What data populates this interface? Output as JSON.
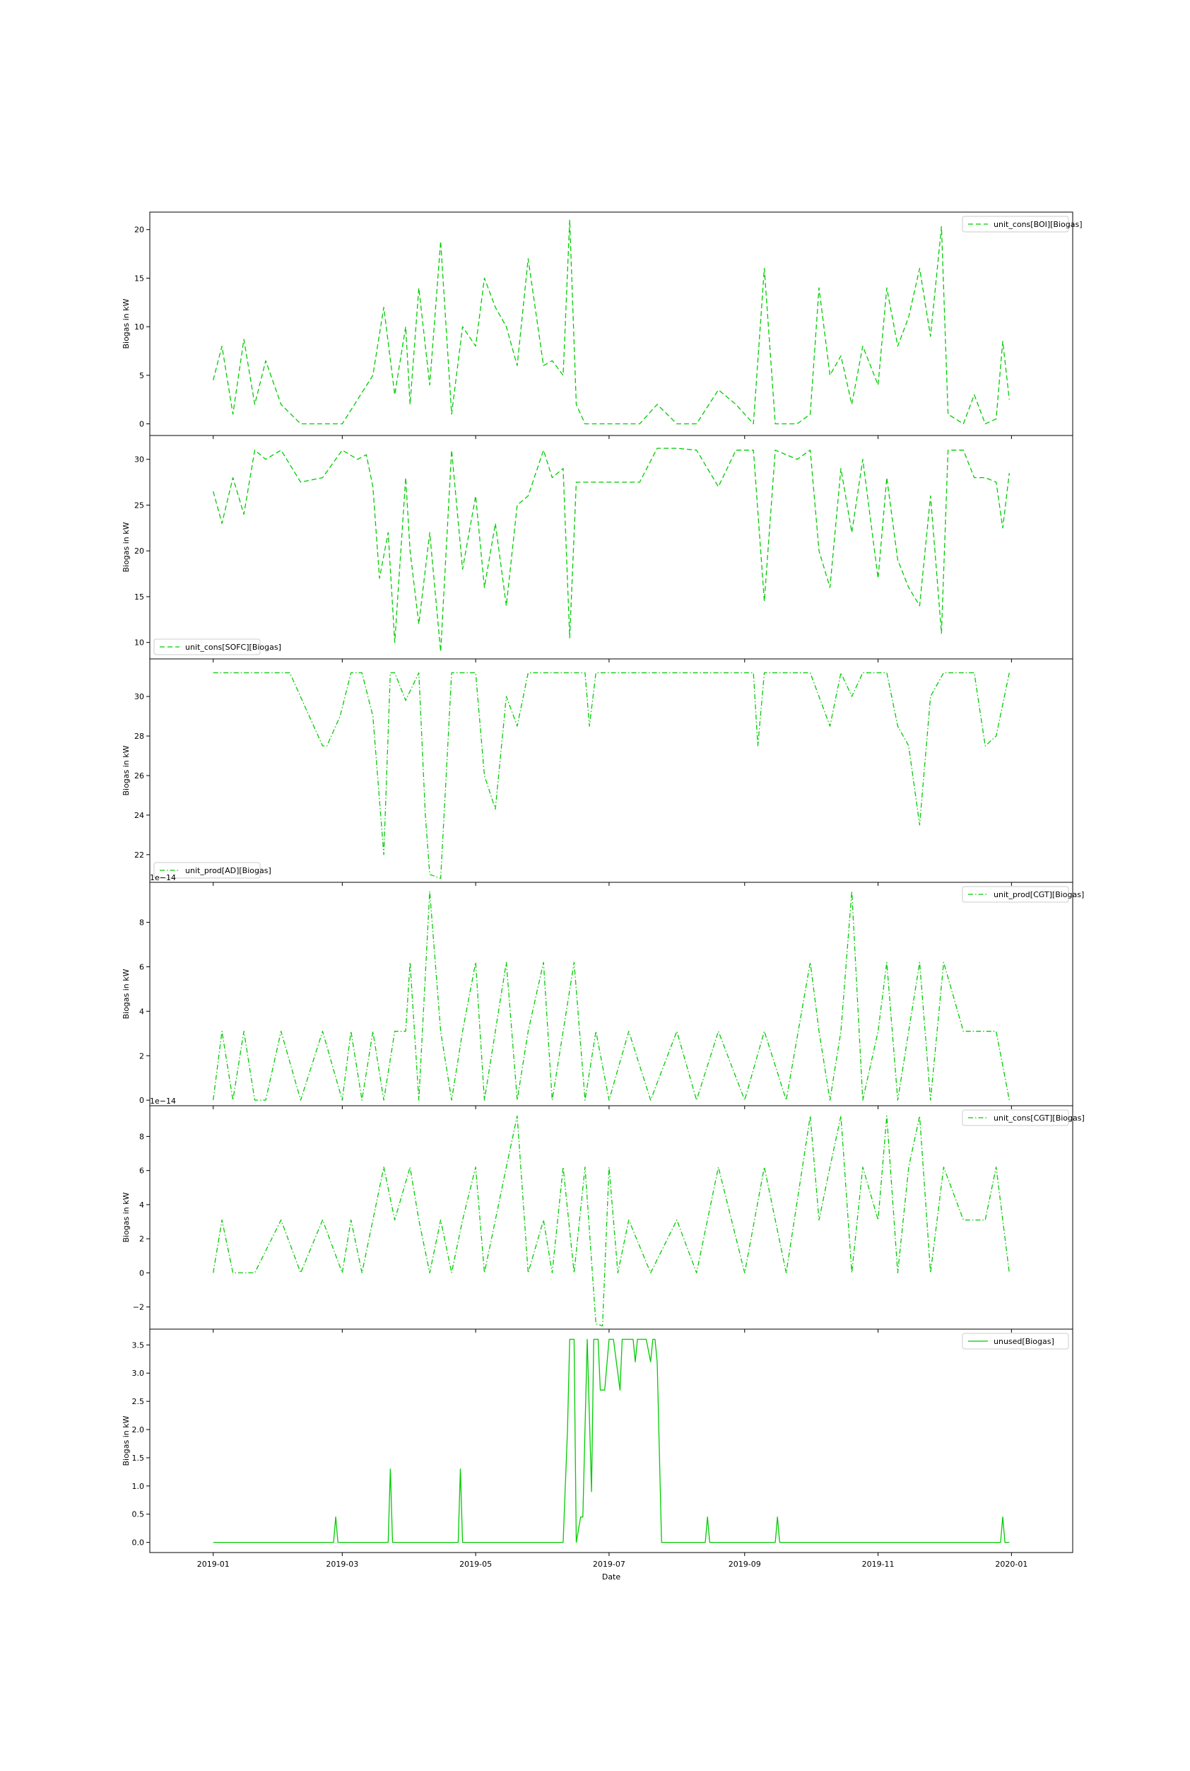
{
  "figure": {
    "xlabel": "Date",
    "x_ticks": [
      "2019-01",
      "2019-03",
      "2019-05",
      "2019-07",
      "2019-09",
      "2019-11",
      "2020-01"
    ],
    "line_color": "#00cc00",
    "ylabel": "Biogas in kW"
  },
  "chart_data": [
    {
      "type": "line",
      "series": [
        {
          "name": "unit_cons[BOI][Biogas]",
          "style": "dashed",
          "color": "#00cc00"
        }
      ],
      "ylabel": "Biogas in kW",
      "ylim": [
        -1.2,
        21.8
      ],
      "yticks": [
        0,
        5,
        10,
        15,
        20
      ],
      "ytick_labels": [
        "0",
        "5",
        "10",
        "15",
        "20"
      ],
      "offset_text": "",
      "legend_loc": "upper right",
      "x": [
        "2019-01-01",
        "2019-01-05",
        "2019-01-10",
        "2019-01-15",
        "2019-01-20",
        "2019-01-25",
        "2019-02-01",
        "2019-02-10",
        "2019-02-20",
        "2019-03-01",
        "2019-03-08",
        "2019-03-15",
        "2019-03-20",
        "2019-03-25",
        "2019-03-30",
        "2019-04-01",
        "2019-04-05",
        "2019-04-10",
        "2019-04-15",
        "2019-04-20",
        "2019-04-25",
        "2019-05-01",
        "2019-05-05",
        "2019-05-10",
        "2019-05-15",
        "2019-05-20",
        "2019-05-25",
        "2019-06-01",
        "2019-06-05",
        "2019-06-10",
        "2019-06-13",
        "2019-06-16",
        "2019-06-20",
        "2019-07-01",
        "2019-07-15",
        "2019-07-23",
        "2019-08-01",
        "2019-08-10",
        "2019-08-20",
        "2019-08-28",
        "2019-09-05",
        "2019-09-10",
        "2019-09-15",
        "2019-09-25",
        "2019-10-01",
        "2019-10-05",
        "2019-10-10",
        "2019-10-15",
        "2019-10-20",
        "2019-10-25",
        "2019-11-01",
        "2019-11-05",
        "2019-11-10",
        "2019-11-15",
        "2019-11-20",
        "2019-11-25",
        "2019-11-30",
        "2019-12-03",
        "2019-12-10",
        "2019-12-15",
        "2019-12-20",
        "2019-12-25",
        "2019-12-28",
        "2019-12-31"
      ],
      "y": [
        4.5,
        8,
        1,
        8.7,
        2,
        6.5,
        2,
        0,
        0,
        0,
        2.5,
        5,
        12,
        3,
        10,
        2,
        14,
        4,
        18.8,
        1,
        10,
        8,
        15,
        12,
        10,
        6,
        17,
        6,
        6.5,
        5,
        21,
        2,
        0,
        0,
        0,
        2,
        0,
        0,
        3.5,
        2,
        0,
        16,
        0,
        0,
        1,
        14,
        5,
        7,
        2,
        8,
        4,
        14,
        8,
        11,
        16,
        9,
        20.3,
        1,
        0,
        3,
        0,
        0.5,
        8.5,
        2.5
      ]
    },
    {
      "type": "line",
      "series": [
        {
          "name": "unit_cons[SOFC][Biogas]",
          "style": "dashed",
          "color": "#00cc00"
        }
      ],
      "ylabel": "Biogas in kW",
      "ylim": [
        8.2,
        32.6
      ],
      "yticks": [
        10,
        15,
        20,
        25,
        30
      ],
      "ytick_labels": [
        "10",
        "15",
        "20",
        "25",
        "30"
      ],
      "offset_text": "",
      "legend_loc": "lower left",
      "x": [
        "2019-01-01",
        "2019-01-05",
        "2019-01-10",
        "2019-01-15",
        "2019-01-20",
        "2019-01-25",
        "2019-02-01",
        "2019-02-10",
        "2019-02-20",
        "2019-03-01",
        "2019-03-08",
        "2019-03-12",
        "2019-03-15",
        "2019-03-18",
        "2019-03-22",
        "2019-03-25",
        "2019-03-30",
        "2019-04-01",
        "2019-04-05",
        "2019-04-10",
        "2019-04-15",
        "2019-04-20",
        "2019-04-25",
        "2019-05-01",
        "2019-05-05",
        "2019-05-10",
        "2019-05-15",
        "2019-05-20",
        "2019-05-25",
        "2019-06-01",
        "2019-06-05",
        "2019-06-10",
        "2019-06-13",
        "2019-06-16",
        "2019-06-20",
        "2019-07-01",
        "2019-07-15",
        "2019-07-23",
        "2019-08-01",
        "2019-08-10",
        "2019-08-20",
        "2019-08-28",
        "2019-09-05",
        "2019-09-10",
        "2019-09-15",
        "2019-09-25",
        "2019-10-01",
        "2019-10-05",
        "2019-10-10",
        "2019-10-15",
        "2019-10-20",
        "2019-10-25",
        "2019-11-01",
        "2019-11-05",
        "2019-11-10",
        "2019-11-15",
        "2019-11-20",
        "2019-11-25",
        "2019-11-30",
        "2019-12-03",
        "2019-12-10",
        "2019-12-15",
        "2019-12-20",
        "2019-12-25",
        "2019-12-28",
        "2019-12-31"
      ],
      "y": [
        26.5,
        23,
        28,
        24,
        31,
        30,
        31,
        27.5,
        28,
        31,
        30,
        30.5,
        27,
        17,
        22,
        10,
        28,
        20,
        12,
        22,
        9,
        31,
        18,
        26,
        16,
        23,
        14,
        25,
        26,
        31,
        28,
        29,
        10.5,
        27.5,
        27.5,
        27.5,
        27.5,
        31.2,
        31.2,
        31,
        27,
        31,
        31,
        14.5,
        31,
        30,
        31,
        20,
        16,
        29,
        22,
        30,
        17,
        28,
        19,
        16,
        14,
        26,
        11,
        31,
        31,
        28,
        28,
        27.5,
        22.5,
        28.5
      ]
    },
    {
      "type": "line",
      "series": [
        {
          "name": "unit_prod[AD][Biogas]",
          "style": "dashdot",
          "color": "#00cc00"
        }
      ],
      "ylabel": "Biogas in kW",
      "ylim": [
        20.6,
        31.9
      ],
      "yticks": [
        22,
        24,
        26,
        28,
        30
      ],
      "ytick_labels": [
        "22",
        "24",
        "26",
        "28",
        "30"
      ],
      "offset_text": "",
      "legend_loc": "lower left",
      "x": [
        "2019-01-01",
        "2019-01-20",
        "2019-02-05",
        "2019-02-20",
        "2019-02-22",
        "2019-02-28",
        "2019-03-05",
        "2019-03-10",
        "2019-03-15",
        "2019-03-20",
        "2019-03-23",
        "2019-03-25",
        "2019-03-30",
        "2019-04-05",
        "2019-04-08",
        "2019-04-10",
        "2019-04-15",
        "2019-04-18",
        "2019-04-20",
        "2019-04-22",
        "2019-05-01",
        "2019-05-05",
        "2019-05-10",
        "2019-05-15",
        "2019-05-20",
        "2019-05-25",
        "2019-06-01",
        "2019-06-10",
        "2019-06-20",
        "2019-06-22",
        "2019-06-25",
        "2019-07-10",
        "2019-08-01",
        "2019-08-20",
        "2019-09-05",
        "2019-09-07",
        "2019-09-10",
        "2019-10-01",
        "2019-10-10",
        "2019-10-15",
        "2019-10-20",
        "2019-10-25",
        "2019-11-05",
        "2019-11-10",
        "2019-11-15",
        "2019-11-20",
        "2019-11-25",
        "2019-12-01",
        "2019-12-15",
        "2019-12-20",
        "2019-12-25",
        "2019-12-31"
      ],
      "y": [
        31.2,
        31.2,
        31.2,
        27.5,
        27.5,
        29,
        31.2,
        31.2,
        29,
        22,
        31.2,
        31.2,
        29.8,
        31.2,
        24,
        21,
        20.8,
        27,
        31.2,
        31.2,
        31.2,
        26,
        24.3,
        30,
        28.5,
        31.2,
        31.2,
        31.2,
        31.2,
        28.5,
        31.2,
        31.2,
        31.2,
        31.2,
        31.2,
        27.5,
        31.2,
        31.2,
        28.5,
        31.2,
        30,
        31.2,
        31.2,
        28.5,
        27.5,
        23.5,
        30,
        31.2,
        31.2,
        27.5,
        28,
        31.2
      ]
    },
    {
      "type": "line",
      "series": [
        {
          "name": "unit_prod[CGT][Biogas]",
          "style": "dashdot",
          "color": "#00cc00"
        }
      ],
      "ylabel": "Biogas in kW",
      "ylim": [
        -0.25,
        9.8
      ],
      "yticks": [
        0,
        2,
        4,
        6,
        8
      ],
      "ytick_labels": [
        "0",
        "2",
        "4",
        "6",
        "8"
      ],
      "offset_text": "1e−14",
      "legend_loc": "upper right",
      "x": [
        "2019-01-01",
        "2019-01-05",
        "2019-01-10",
        "2019-01-15",
        "2019-01-20",
        "2019-01-25",
        "2019-02-01",
        "2019-02-10",
        "2019-02-20",
        "2019-03-01",
        "2019-03-05",
        "2019-03-10",
        "2019-03-15",
        "2019-03-20",
        "2019-03-25",
        "2019-03-30",
        "2019-04-01",
        "2019-04-05",
        "2019-04-10",
        "2019-04-15",
        "2019-04-20",
        "2019-04-25",
        "2019-05-01",
        "2019-05-05",
        "2019-05-10",
        "2019-05-15",
        "2019-05-20",
        "2019-05-25",
        "2019-06-01",
        "2019-06-05",
        "2019-06-10",
        "2019-06-15",
        "2019-06-20",
        "2019-06-25",
        "2019-07-01",
        "2019-07-10",
        "2019-07-20",
        "2019-08-01",
        "2019-08-10",
        "2019-08-20",
        "2019-09-01",
        "2019-09-10",
        "2019-09-20",
        "2019-10-01",
        "2019-10-05",
        "2019-10-10",
        "2019-10-15",
        "2019-10-20",
        "2019-10-25",
        "2019-11-01",
        "2019-11-05",
        "2019-11-10",
        "2019-11-15",
        "2019-11-20",
        "2019-11-25",
        "2019-12-01",
        "2019-12-10",
        "2019-12-20",
        "2019-12-25",
        "2019-12-31"
      ],
      "y": [
        0,
        3.1,
        0,
        3.1,
        0,
        0,
        3.1,
        0,
        3.1,
        0,
        3.1,
        0,
        3.1,
        0,
        3.1,
        3.1,
        6.2,
        0,
        9.4,
        3.1,
        0,
        3.1,
        6.2,
        0,
        3.1,
        6.2,
        0,
        3.1,
        6.2,
        0,
        3.1,
        6.2,
        0,
        3.1,
        0,
        3.1,
        0,
        3.1,
        0,
        3.1,
        0,
        3.1,
        0,
        6.2,
        3.1,
        0,
        3.1,
        9.4,
        0,
        3.1,
        6.2,
        0,
        3.1,
        6.2,
        0,
        6.2,
        3.1,
        3.1,
        3.1,
        0
      ]
    },
    {
      "type": "line",
      "series": [
        {
          "name": "unit_cons[CGT][Biogas]",
          "style": "dashdot",
          "color": "#00cc00"
        }
      ],
      "ylabel": "Biogas in kW",
      "ylim": [
        -3.3,
        9.8
      ],
      "yticks": [
        -2,
        0,
        2,
        4,
        6,
        8
      ],
      "ytick_labels": [
        "−2",
        "0",
        "2",
        "4",
        "6",
        "8"
      ],
      "offset_text": "1e−14",
      "legend_loc": "upper right",
      "x": [
        "2019-01-01",
        "2019-01-05",
        "2019-01-10",
        "2019-01-20",
        "2019-02-01",
        "2019-02-10",
        "2019-02-20",
        "2019-03-01",
        "2019-03-05",
        "2019-03-10",
        "2019-03-15",
        "2019-03-20",
        "2019-03-25",
        "2019-04-01",
        "2019-04-05",
        "2019-04-10",
        "2019-04-15",
        "2019-04-20",
        "2019-04-25",
        "2019-05-01",
        "2019-05-05",
        "2019-05-10",
        "2019-05-15",
        "2019-05-20",
        "2019-05-25",
        "2019-06-01",
        "2019-06-05",
        "2019-06-10",
        "2019-06-15",
        "2019-06-20",
        "2019-06-25",
        "2019-06-28",
        "2019-07-01",
        "2019-07-05",
        "2019-07-10",
        "2019-07-20",
        "2019-08-01",
        "2019-08-10",
        "2019-08-20",
        "2019-09-01",
        "2019-09-10",
        "2019-09-20",
        "2019-10-01",
        "2019-10-05",
        "2019-10-10",
        "2019-10-15",
        "2019-10-20",
        "2019-10-25",
        "2019-11-01",
        "2019-11-05",
        "2019-11-10",
        "2019-11-15",
        "2019-11-20",
        "2019-11-25",
        "2019-12-01",
        "2019-12-10",
        "2019-12-20",
        "2019-12-25",
        "2019-12-31"
      ],
      "y": [
        0,
        3.1,
        0,
        0,
        3.1,
        0,
        3.1,
        0,
        3.1,
        0,
        3.1,
        6.2,
        3.1,
        6.2,
        3.1,
        0,
        3.1,
        0,
        3.1,
        6.2,
        0,
        3.1,
        6.2,
        9.2,
        0,
        3.1,
        0,
        6.2,
        0,
        6.2,
        -3,
        -3.1,
        6.2,
        0,
        3.1,
        0,
        3.1,
        0,
        6.2,
        0,
        6.2,
        0,
        9.2,
        3.1,
        6.2,
        9.2,
        0,
        6.2,
        3.1,
        9.2,
        0,
        6.2,
        9.2,
        0,
        6.2,
        3.1,
        3.1,
        6.2,
        0
      ]
    },
    {
      "type": "line",
      "series": [
        {
          "name": "unused[Biogas]",
          "style": "solid",
          "color": "#00cc00"
        }
      ],
      "ylabel": "Biogas in kW",
      "ylim": [
        -0.18,
        3.78
      ],
      "yticks": [
        0,
        0.5,
        1,
        1.5,
        2,
        2.5,
        3,
        3.5
      ],
      "ytick_labels": [
        "0.0",
        "0.5",
        "1.0",
        "1.5",
        "2.0",
        "2.5",
        "3.0",
        "3.5"
      ],
      "offset_text": "",
      "legend_loc": "upper right",
      "x": [
        "2019-01-01",
        "2019-02-25",
        "2019-02-26",
        "2019-02-27",
        "2019-03-22",
        "2019-03-23",
        "2019-03-24",
        "2019-04-23",
        "2019-04-24",
        "2019-04-25",
        "2019-06-10",
        "2019-06-12",
        "2019-06-13",
        "2019-06-15",
        "2019-06-16",
        "2019-06-18",
        "2019-06-19",
        "2019-06-21",
        "2019-06-23",
        "2019-06-24",
        "2019-06-26",
        "2019-06-27",
        "2019-06-29",
        "2019-07-01",
        "2019-07-02",
        "2019-07-03",
        "2019-07-06",
        "2019-07-07",
        "2019-07-08",
        "2019-07-09",
        "2019-07-12",
        "2019-07-13",
        "2019-07-14",
        "2019-07-17",
        "2019-07-18",
        "2019-07-20",
        "2019-07-21",
        "2019-07-22",
        "2019-07-23",
        "2019-07-25",
        "2019-08-14",
        "2019-08-15",
        "2019-08-16",
        "2019-09-15",
        "2019-09-16",
        "2019-09-17",
        "2019-12-27",
        "2019-12-28",
        "2019-12-29",
        "2019-12-31"
      ],
      "y": [
        0,
        0,
        0.45,
        0,
        0,
        1.3,
        0,
        0,
        1.3,
        0,
        0,
        2,
        3.6,
        3.6,
        0,
        0.45,
        0.45,
        3.6,
        0.9,
        3.6,
        3.6,
        2.7,
        2.7,
        3.6,
        3.6,
        3.6,
        2.7,
        3.6,
        3.6,
        3.6,
        3.6,
        3.2,
        3.6,
        3.6,
        3.6,
        3.2,
        3.6,
        3.6,
        3.2,
        0,
        0,
        0.45,
        0,
        0,
        0.45,
        0,
        0,
        0.45,
        0,
        0
      ]
    }
  ]
}
